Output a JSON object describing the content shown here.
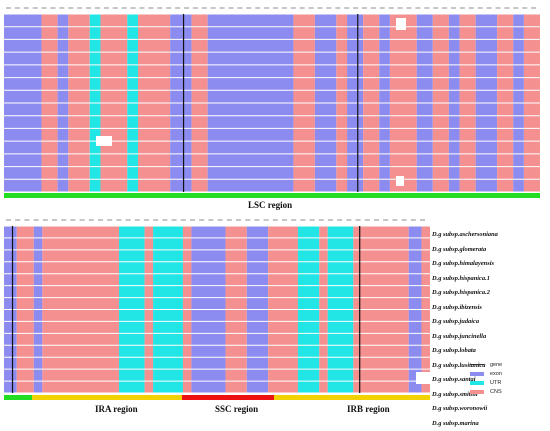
{
  "top_panel": {
    "region_label": "LSC region",
    "bar_color": "#22dd22"
  },
  "bottom_panel": {
    "region_labels": {
      "ira": "IRA region",
      "ssc": "SSC region",
      "irb": "IRB region"
    },
    "bar_colors": {
      "ira": "#f2d200",
      "ssc": "#ee1111",
      "irb": "#f2d200",
      "lsc": "#22dd22"
    }
  },
  "taxa": [
    "D.g subsp.aschersoniana",
    "D.g subsp.glomerata",
    "D.g subsp.himalayensis",
    "D.g subsp.hispanica.1",
    "D.g subsp.hispanica.2",
    "D.g subsp.ibizensis",
    "D.g subsp.judaica",
    "D.g subsp.juncinella",
    "D.g subsp.lobata",
    "D.g subsp.lusitanica",
    "D.g subsp.santai",
    "D.g subsp.smithii",
    "D.g subsp.woronowii",
    "D.g subsp.marina"
  ],
  "legend": {
    "gene_label": "gene",
    "items": [
      {
        "label": "exon",
        "color": "#8c8cf0"
      },
      {
        "label": "UTR",
        "color": "#22e5e5"
      },
      {
        "label": "CNS",
        "color": "#f59090"
      }
    ]
  },
  "colors": {
    "exon": "#8c8cf0",
    "utr": "#22e5e5",
    "cns": "#f59090",
    "divider": "#111111"
  }
}
